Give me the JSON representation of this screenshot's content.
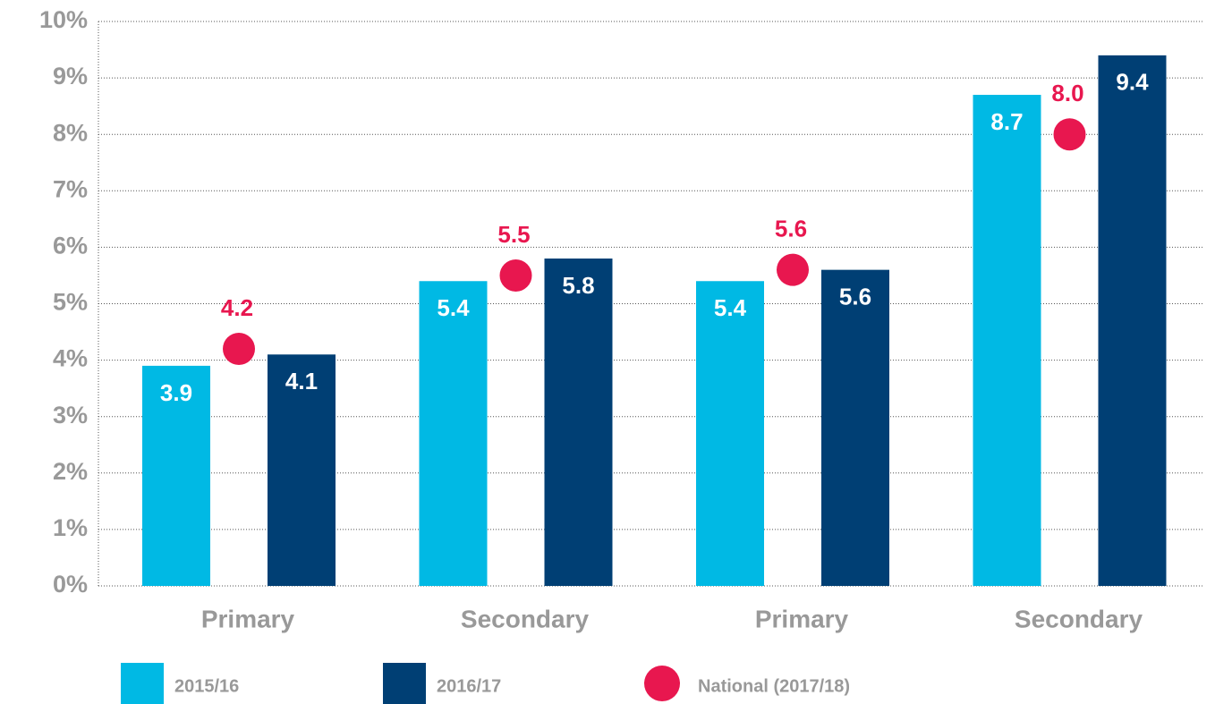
{
  "chart_data": {
    "type": "bar",
    "categories": [
      "Primary",
      "Secondary",
      "Primary",
      "Secondary"
    ],
    "series": [
      {
        "name": "2015/16",
        "color": "#00b9e4",
        "values": [
          3.9,
          5.4,
          5.4,
          8.7
        ]
      },
      {
        "name": "2016/17",
        "color": "#003f74",
        "values": [
          4.1,
          5.8,
          5.6,
          9.4
        ]
      },
      {
        "name": "National (2017/18)",
        "color": "#e8174f",
        "kind": "dot",
        "values": [
          4.2,
          5.5,
          5.6,
          8.0
        ],
        "value_labels": [
          "4.2",
          "5.5",
          "5.6",
          "8.0"
        ]
      }
    ],
    "ylim": [
      0,
      10
    ],
    "yticks": [
      {
        "value": 0,
        "label": "0%"
      },
      {
        "value": 1,
        "label": "1%"
      },
      {
        "value": 2,
        "label": "2%"
      },
      {
        "value": 3,
        "label": "3%"
      },
      {
        "value": 4,
        "label": "4%"
      },
      {
        "value": 5,
        "label": "5%"
      },
      {
        "value": 6,
        "label": "6%"
      },
      {
        "value": 7,
        "label": "7%"
      },
      {
        "value": 8,
        "label": "8%"
      },
      {
        "value": 9,
        "label": "9%"
      },
      {
        "value": 10,
        "label": "10%"
      }
    ],
    "grid": true
  }
}
